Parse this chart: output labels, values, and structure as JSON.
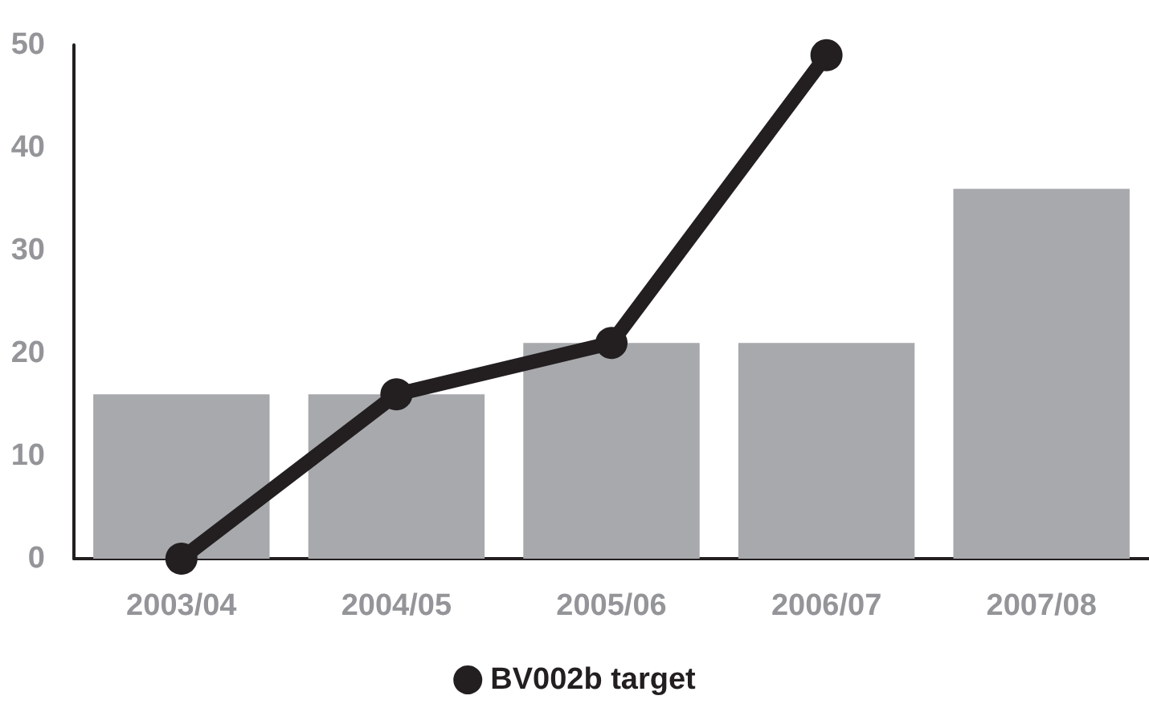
{
  "chart_data": {
    "type": "bar",
    "categories": [
      "2003/04",
      "2004/05",
      "2005/06",
      "2006/07",
      "2007/08"
    ],
    "series": [
      {
        "color": "#a7a9ac",
        "values": [
          16,
          16,
          21,
          21,
          36
        ]
      },
      {
        "type": "line",
        "name": "BV002b target",
        "color": "#231f20",
        "values": [
          0,
          16,
          21,
          49,
          null
        ]
      }
    ],
    "ylim": [
      0,
      50
    ],
    "yticks": [
      0,
      10,
      20,
      30,
      40,
      50
    ],
    "grid": false,
    "legend": "bottom",
    "marker": "circle",
    "line_style": "solid"
  }
}
